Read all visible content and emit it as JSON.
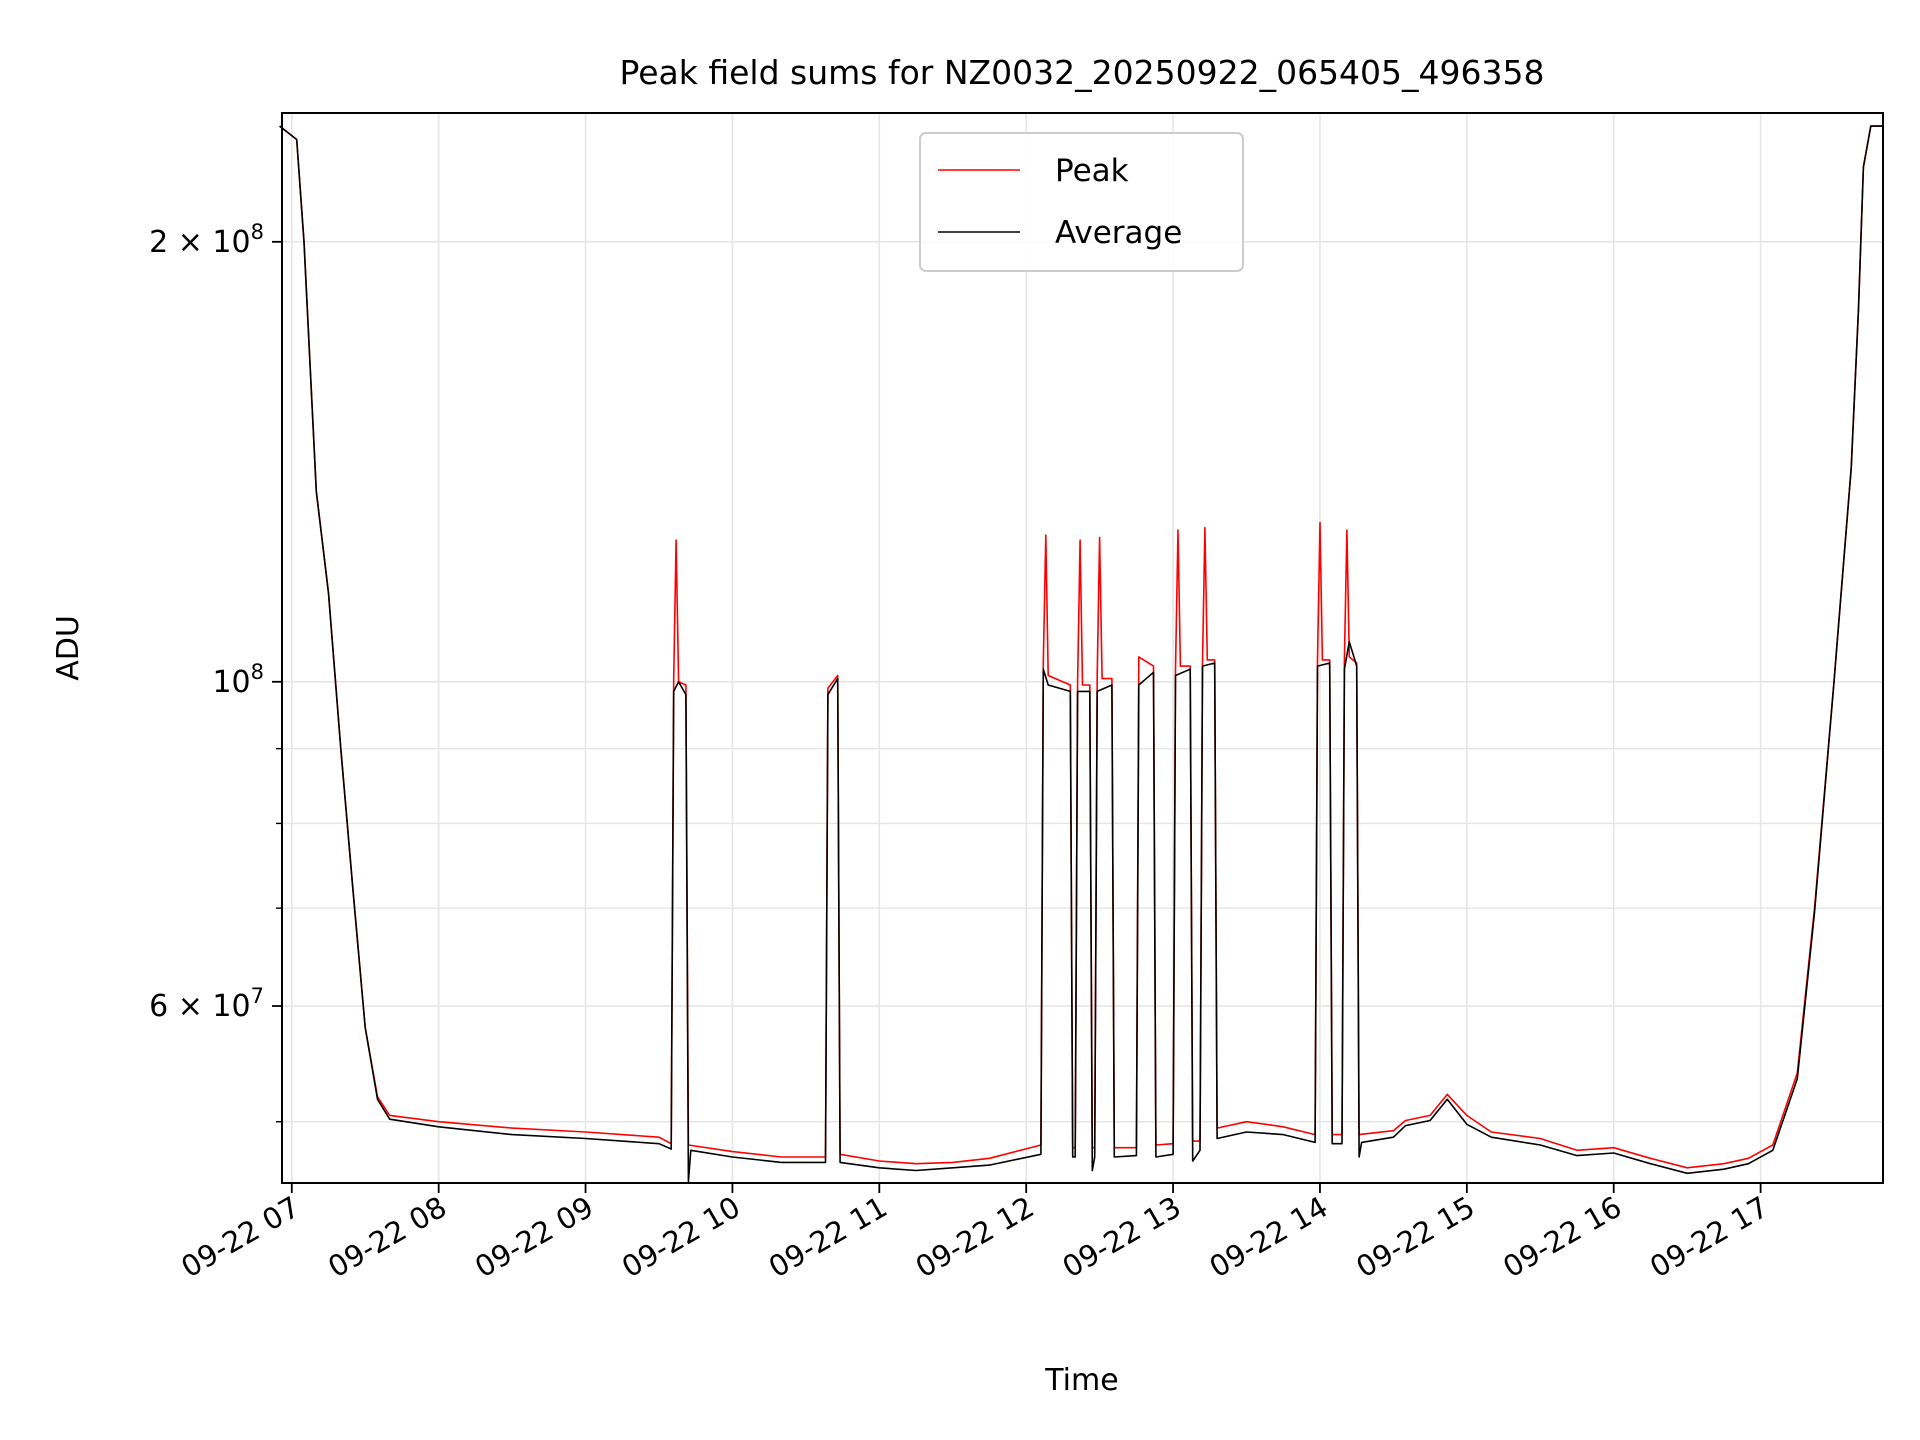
{
  "chart_data": {
    "type": "line",
    "title": "Peak field sums for NZ0032_20250922_065405_496358",
    "xlabel": "Time",
    "ylabel": "ADU",
    "yscale": "log",
    "grid": true,
    "legend_position": "top-center",
    "xlim": [
      "2025-09-22 06:56",
      "2025-09-22 17:50"
    ],
    "ylim": [
      45400000,
      245000000
    ],
    "x_tick_labels": [
      {
        "time": "2025-09-22 07:00",
        "label": "09-22 07"
      },
      {
        "time": "2025-09-22 08:00",
        "label": "09-22 08"
      },
      {
        "time": "2025-09-22 09:00",
        "label": "09-22 09"
      },
      {
        "time": "2025-09-22 10:00",
        "label": "09-22 10"
      },
      {
        "time": "2025-09-22 11:00",
        "label": "09-22 11"
      },
      {
        "time": "2025-09-22 12:00",
        "label": "09-22 12"
      },
      {
        "time": "2025-09-22 13:00",
        "label": "09-22 13"
      },
      {
        "time": "2025-09-22 14:00",
        "label": "09-22 14"
      },
      {
        "time": "2025-09-22 15:00",
        "label": "09-22 15"
      },
      {
        "time": "2025-09-22 16:00",
        "label": "09-22 16"
      },
      {
        "time": "2025-09-22 17:00",
        "label": "09-22 17"
      }
    ],
    "y_major_ticks": [
      {
        "value": 100000000,
        "mant": "",
        "exp": "8"
      },
      {
        "value": 200000000,
        "mant": "2",
        "exp": "8"
      },
      {
        "value": 60000000,
        "mant": "6",
        "exp": "7"
      }
    ],
    "y_minor_gridlines": [
      50000000,
      70000000,
      80000000,
      90000000,
      200000000
    ],
    "colors": {
      "peak": "#ff0000",
      "average": "#000000",
      "grid": "#e6e6e6"
    },
    "series": [
      {
        "name": "Peak",
        "color": "#ff0000",
        "points": [
          [
            "2025-09-22 06:55",
            240000000
          ],
          [
            "2025-09-22 07:02",
            235000000
          ],
          [
            "2025-09-22 07:05",
            200000000
          ],
          [
            "2025-09-22 07:10",
            135000000
          ],
          [
            "2025-09-22 07:15",
            115000000
          ],
          [
            "2025-09-22 07:20",
            90000000
          ],
          [
            "2025-09-22 07:25",
            72000000
          ],
          [
            "2025-09-22 07:30",
            58000000
          ],
          [
            "2025-09-22 07:35",
            52000000
          ],
          [
            "2025-09-22 07:40",
            50500000
          ],
          [
            "2025-09-22 08:00",
            50000000
          ],
          [
            "2025-09-22 08:30",
            49500000
          ],
          [
            "2025-09-22 09:00",
            49200000
          ],
          [
            "2025-09-22 09:30",
            48800000
          ],
          [
            "2025-09-22 09:35",
            48300000
          ],
          [
            "2025-09-22 09:36",
            100500000
          ],
          [
            "2025-09-22 09:37",
            125000000
          ],
          [
            "2025-09-22 09:38",
            100000000
          ],
          [
            "2025-09-22 09:41",
            99500000
          ],
          [
            "2025-09-22 09:42",
            48200000
          ],
          [
            "2025-09-22 10:00",
            47700000
          ],
          [
            "2025-09-22 10:20",
            47300000
          ],
          [
            "2025-09-22 10:38",
            47300000
          ],
          [
            "2025-09-22 10:39",
            99000000
          ],
          [
            "2025-09-22 10:43",
            101000000
          ],
          [
            "2025-09-22 10:44",
            47500000
          ],
          [
            "2025-09-22 11:00",
            47000000
          ],
          [
            "2025-09-22 11:15",
            46800000
          ],
          [
            "2025-09-22 11:30",
            46900000
          ],
          [
            "2025-09-22 11:45",
            47200000
          ],
          [
            "2025-09-22 12:06",
            48200000
          ],
          [
            "2025-09-22 12:07",
            103000000
          ],
          [
            "2025-09-22 12:08",
            126000000
          ],
          [
            "2025-09-22 12:09",
            101000000
          ],
          [
            "2025-09-22 12:18",
            99500000
          ],
          [
            "2025-09-22 12:19",
            48000000
          ],
          [
            "2025-09-22 12:20",
            48000000
          ],
          [
            "2025-09-22 12:21",
            100000000
          ],
          [
            "2025-09-22 12:22",
            125000000
          ],
          [
            "2025-09-22 12:23",
            99500000
          ],
          [
            "2025-09-22 12:26",
            99500000
          ],
          [
            "2025-09-22 12:27",
            48000000
          ],
          [
            "2025-09-22 12:28",
            48000000
          ],
          [
            "2025-09-22 12:29",
            101000000
          ],
          [
            "2025-09-22 12:30",
            125500000
          ],
          [
            "2025-09-22 12:31",
            100500000
          ],
          [
            "2025-09-22 12:35",
            100500000
          ],
          [
            "2025-09-22 12:36",
            48000000
          ],
          [
            "2025-09-22 12:45",
            48000000
          ],
          [
            "2025-09-22 12:46",
            104000000
          ],
          [
            "2025-09-22 12:52",
            102500000
          ],
          [
            "2025-09-22 12:53",
            48200000
          ],
          [
            "2025-09-22 13:00",
            48300000
          ],
          [
            "2025-09-22 13:01",
            102000000
          ],
          [
            "2025-09-22 13:02",
            127000000
          ],
          [
            "2025-09-22 13:03",
            102500000
          ],
          [
            "2025-09-22 13:07",
            102500000
          ],
          [
            "2025-09-22 13:08",
            48500000
          ],
          [
            "2025-09-22 13:11",
            48500000
          ],
          [
            "2025-09-22 13:12",
            103000000
          ],
          [
            "2025-09-22 13:13",
            127500000
          ],
          [
            "2025-09-22 13:14",
            103500000
          ],
          [
            "2025-09-22 13:17",
            103500000
          ],
          [
            "2025-09-22 13:18",
            49500000
          ],
          [
            "2025-09-22 13:30",
            50000000
          ],
          [
            "2025-09-22 13:45",
            49600000
          ],
          [
            "2025-09-22 13:58",
            49000000
          ],
          [
            "2025-09-22 13:59",
            103500000
          ],
          [
            "2025-09-22 14:00",
            128500000
          ],
          [
            "2025-09-22 14:01",
            103500000
          ],
          [
            "2025-09-22 14:04",
            103500000
          ],
          [
            "2025-09-22 14:05",
            49000000
          ],
          [
            "2025-09-22 14:09",
            49000000
          ],
          [
            "2025-09-22 14:10",
            103500000
          ],
          [
            "2025-09-22 14:11",
            127000000
          ],
          [
            "2025-09-22 14:12",
            104000000
          ],
          [
            "2025-09-22 14:15",
            103000000
          ],
          [
            "2025-09-22 14:16",
            49000000
          ],
          [
            "2025-09-22 14:30",
            49300000
          ],
          [
            "2025-09-22 14:35",
            50100000
          ],
          [
            "2025-09-22 14:45",
            50500000
          ],
          [
            "2025-09-22 14:52",
            52200000
          ],
          [
            "2025-09-22 15:00",
            50500000
          ],
          [
            "2025-09-22 15:10",
            49200000
          ],
          [
            "2025-09-22 15:30",
            48700000
          ],
          [
            "2025-09-22 15:45",
            47800000
          ],
          [
            "2025-09-22 16:00",
            48000000
          ],
          [
            "2025-09-22 16:15",
            47200000
          ],
          [
            "2025-09-22 16:30",
            46500000
          ],
          [
            "2025-09-22 16:45",
            46800000
          ],
          [
            "2025-09-22 16:55",
            47200000
          ],
          [
            "2025-09-22 17:05",
            48200000
          ],
          [
            "2025-09-22 17:15",
            54000000
          ],
          [
            "2025-09-22 17:22",
            70000000
          ],
          [
            "2025-09-22 17:30",
            100000000
          ],
          [
            "2025-09-22 17:37",
            140000000
          ],
          [
            "2025-09-22 17:40",
            180000000
          ],
          [
            "2025-09-22 17:42",
            225000000
          ],
          [
            "2025-09-22 17:45",
            240000000
          ],
          [
            "2025-09-22 17:50",
            240000000
          ]
        ]
      },
      {
        "name": "Average",
        "color": "#000000",
        "points": [
          [
            "2025-09-22 06:55",
            240000000
          ],
          [
            "2025-09-22 07:02",
            235000000
          ],
          [
            "2025-09-22 07:05",
            200000000
          ],
          [
            "2025-09-22 07:10",
            135000000
          ],
          [
            "2025-09-22 07:15",
            115000000
          ],
          [
            "2025-09-22 07:20",
            90000000
          ],
          [
            "2025-09-22 07:25",
            72000000
          ],
          [
            "2025-09-22 07:30",
            58000000
          ],
          [
            "2025-09-22 07:35",
            51800000
          ],
          [
            "2025-09-22 07:40",
            50200000
          ],
          [
            "2025-09-22 08:00",
            49600000
          ],
          [
            "2025-09-22 08:30",
            49000000
          ],
          [
            "2025-09-22 09:00",
            48700000
          ],
          [
            "2025-09-22 09:30",
            48300000
          ],
          [
            "2025-09-22 09:35",
            47900000
          ],
          [
            "2025-09-22 09:36",
            98500000
          ],
          [
            "2025-09-22 09:38",
            100000000
          ],
          [
            "2025-09-22 09:41",
            98000000
          ],
          [
            "2025-09-22 09:42",
            45500000
          ],
          [
            "2025-09-22 09:43",
            47800000
          ],
          [
            "2025-09-22 10:00",
            47300000
          ],
          [
            "2025-09-22 10:20",
            46900000
          ],
          [
            "2025-09-22 10:38",
            46900000
          ],
          [
            "2025-09-22 10:39",
            98000000
          ],
          [
            "2025-09-22 10:43",
            100500000
          ],
          [
            "2025-09-22 10:44",
            46900000
          ],
          [
            "2025-09-22 11:00",
            46500000
          ],
          [
            "2025-09-22 11:15",
            46300000
          ],
          [
            "2025-09-22 11:30",
            46500000
          ],
          [
            "2025-09-22 11:45",
            46700000
          ],
          [
            "2025-09-22 12:06",
            47500000
          ],
          [
            "2025-09-22 12:07",
            102000000
          ],
          [
            "2025-09-22 12:09",
            99500000
          ],
          [
            "2025-09-22 12:18",
            98500000
          ],
          [
            "2025-09-22 12:19",
            47300000
          ],
          [
            "2025-09-22 12:20",
            47300000
          ],
          [
            "2025-09-22 12:21",
            98500000
          ],
          [
            "2025-09-22 12:26",
            98500000
          ],
          [
            "2025-09-22 12:27",
            46300000
          ],
          [
            "2025-09-22 12:28",
            47300000
          ],
          [
            "2025-09-22 12:29",
            98500000
          ],
          [
            "2025-09-22 12:35",
            99500000
          ],
          [
            "2025-09-22 12:36",
            47300000
          ],
          [
            "2025-09-22 12:45",
            47400000
          ],
          [
            "2025-09-22 12:46",
            99500000
          ],
          [
            "2025-09-22 12:52",
            101500000
          ],
          [
            "2025-09-22 12:53",
            47300000
          ],
          [
            "2025-09-22 13:00",
            47500000
          ],
          [
            "2025-09-22 13:01",
            101000000
          ],
          [
            "2025-09-22 13:07",
            102000000
          ],
          [
            "2025-09-22 13:08",
            47000000
          ],
          [
            "2025-09-22 13:11",
            47800000
          ],
          [
            "2025-09-22 13:12",
            102500000
          ],
          [
            "2025-09-22 13:17",
            103000000
          ],
          [
            "2025-09-22 13:18",
            48700000
          ],
          [
            "2025-09-22 13:30",
            49200000
          ],
          [
            "2025-09-22 13:45",
            49000000
          ],
          [
            "2025-09-22 13:58",
            48400000
          ],
          [
            "2025-09-22 13:59",
            102500000
          ],
          [
            "2025-09-22 14:04",
            103000000
          ],
          [
            "2025-09-22 14:05",
            48300000
          ],
          [
            "2025-09-22 14:09",
            48300000
          ],
          [
            "2025-09-22 14:10",
            102000000
          ],
          [
            "2025-09-22 14:12",
            106500000
          ],
          [
            "2025-09-22 14:15",
            102500000
          ],
          [
            "2025-09-22 14:16",
            47300000
          ],
          [
            "2025-09-22 14:17",
            48400000
          ],
          [
            "2025-09-22 14:30",
            48800000
          ],
          [
            "2025-09-22 14:35",
            49700000
          ],
          [
            "2025-09-22 14:45",
            50100000
          ],
          [
            "2025-09-22 14:52",
            51800000
          ],
          [
            "2025-09-22 15:00",
            49800000
          ],
          [
            "2025-09-22 15:10",
            48800000
          ],
          [
            "2025-09-22 15:30",
            48200000
          ],
          [
            "2025-09-22 15:45",
            47400000
          ],
          [
            "2025-09-22 16:00",
            47600000
          ],
          [
            "2025-09-22 16:15",
            46800000
          ],
          [
            "2025-09-22 16:30",
            46100000
          ],
          [
            "2025-09-22 16:45",
            46400000
          ],
          [
            "2025-09-22 16:55",
            46800000
          ],
          [
            "2025-09-22 17:05",
            47800000
          ],
          [
            "2025-09-22 17:15",
            53500000
          ],
          [
            "2025-09-22 17:22",
            69500000
          ],
          [
            "2025-09-22 17:30",
            100000000
          ],
          [
            "2025-09-22 17:37",
            140000000
          ],
          [
            "2025-09-22 17:40",
            180000000
          ],
          [
            "2025-09-22 17:42",
            225000000
          ],
          [
            "2025-09-22 17:45",
            240000000
          ],
          [
            "2025-09-22 17:50",
            240000000
          ]
        ]
      }
    ]
  }
}
